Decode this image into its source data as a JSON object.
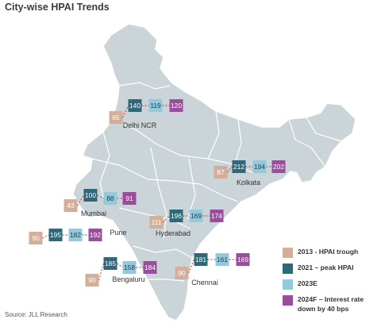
{
  "title": "City-wise HPAI Trends",
  "source": "Source: JLL Research",
  "colors": {
    "trough": "#d3af9a",
    "peak": "#2f6878",
    "e2023": "#92c9dc",
    "f2024": "#9a4d9b",
    "map_fill": "#cbd4d8",
    "map_stroke": "#ffffff",
    "connector": "#c0392b"
  },
  "legend": [
    {
      "key": "trough",
      "label": "2013 - HPAI trough"
    },
    {
      "key": "peak",
      "label": "2021 – peak HPAI"
    },
    {
      "key": "e2023",
      "label": "2023E"
    },
    {
      "key": "f2024",
      "label": "2024F – Interest rate down by 40 bps"
    }
  ],
  "chart_data": {
    "type": "map-annotated",
    "series": [
      "2013 - HPAI trough",
      "2021 – peak HPAI",
      "2023E",
      "2024F – Interest rate down by 40 bps"
    ],
    "cities": [
      {
        "name": "Delhi NCR",
        "trough": 65,
        "peak": 140,
        "e2023": 119,
        "f2024": 120
      },
      {
        "name": "Kolkata",
        "trough": 87,
        "peak": 212,
        "e2023": 194,
        "f2024": 202
      },
      {
        "name": "Mumbai",
        "trough": 43,
        "peak": 100,
        "e2023": 88,
        "f2024": 91
      },
      {
        "name": "Pune",
        "trough": 90,
        "peak": 195,
        "e2023": 182,
        "f2024": 192
      },
      {
        "name": "Hyderabad",
        "trough": 111,
        "peak": 196,
        "e2023": 169,
        "f2024": 174
      },
      {
        "name": "Bengaluru",
        "trough": 90,
        "peak": 185,
        "e2023": 158,
        "f2024": 184
      },
      {
        "name": "Chennai",
        "trough": 90,
        "peak": 181,
        "e2023": 161,
        "f2024": 169
      }
    ]
  }
}
